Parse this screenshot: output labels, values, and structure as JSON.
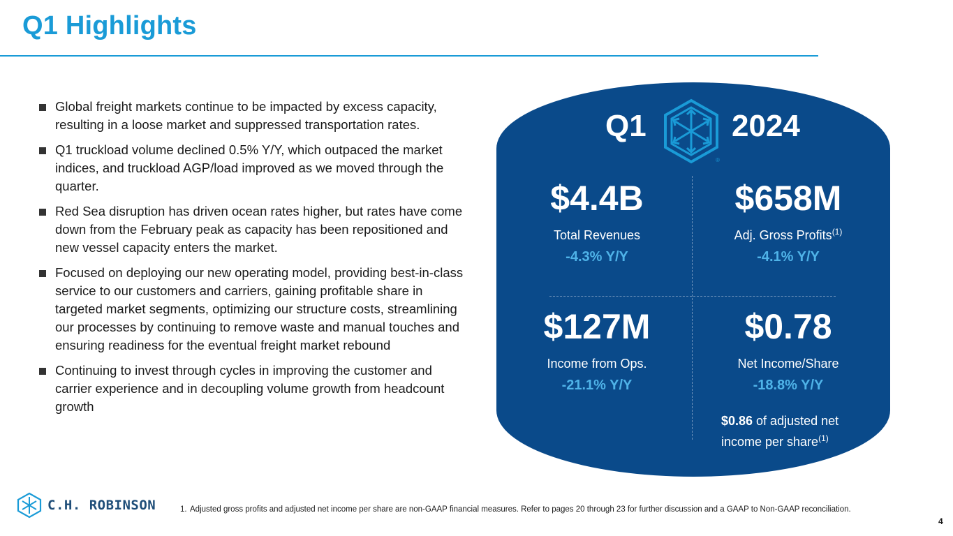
{
  "slide": {
    "title": "Q1 Highlights",
    "page_number": "4"
  },
  "bullets": [
    "Global freight markets continue to be impacted by excess capacity, resulting in a loose market and suppressed transportation rates.",
    "Q1 truckload volume declined 0.5% Y/Y, which outpaced the market indices, and truckload AGP/load improved as we moved through the quarter.",
    "Red Sea disruption has driven ocean rates higher, but rates have come down from the February peak as capacity has been repositioned and new vessel capacity enters the market.",
    "Focused on deploying our new operating model, providing best-in-class service to our customers and carriers, gaining profitable share in targeted market segments, optimizing our structure costs, streamlining our processes by continuing to remove waste and manual touches and ensuring readiness for the eventual freight market rebound",
    "Continuing to invest through cycles in improving the customer and carrier experience and in decoupling volume growth from headcount growth"
  ],
  "panel": {
    "quarter": "Q1",
    "year": "2024",
    "registered_mark": "®",
    "logo_icon": "cube-logo-icon",
    "metrics": [
      {
        "value": "$4.4B",
        "label": "Total Revenues",
        "label_sup": "",
        "change": "-4.3% Y/Y"
      },
      {
        "value": "$658M",
        "label": "Adj. Gross Profits",
        "label_sup": "(1)",
        "change": "-4.1% Y/Y"
      },
      {
        "value": "$127M",
        "label": "Income from Ops.",
        "label_sup": "",
        "change": "-21.1% Y/Y"
      },
      {
        "value": "$0.78",
        "label": "Net Income/Share",
        "label_sup": "",
        "change": "-18.8% Y/Y"
      }
    ],
    "adjusted_note": {
      "value": "$0.86",
      "text_line1": " of adjusted net",
      "text_line2": "income per share",
      "sup": "(1)"
    }
  },
  "footer": {
    "brand_name": "C.H. ROBINSON",
    "footnote_number": "1.",
    "footnote_text": "Adjusted gross profits and adjusted net income per share are non-GAAP financial measures. Refer to pages 20 through 23 for further discussion and a GAAP to Non-GAAP reconciliation."
  },
  "colors": {
    "title_blue": "#1a9bd7",
    "panel_navy": "#0a4a8a",
    "change_blue": "#4fb3e8",
    "brand_navy": "#1f4e79"
  }
}
